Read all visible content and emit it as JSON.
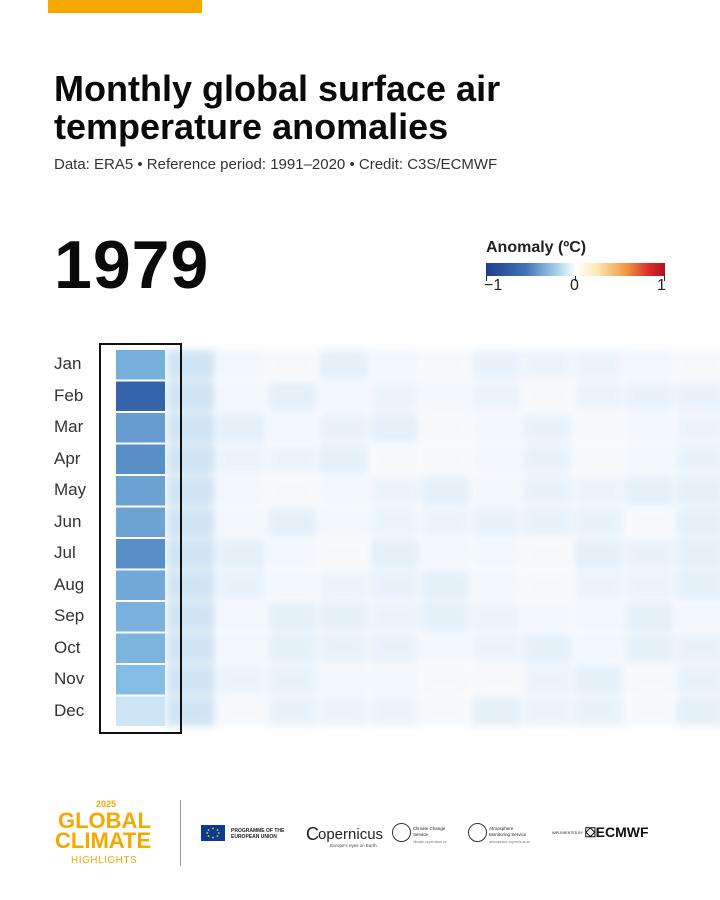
{
  "title": "Monthly global surface air temperature anomalies",
  "subtitle": "Data: ERA5 • Reference period: 1991–2020 • Credit: C3S/ECMWF",
  "year": "1979",
  "legend": {
    "title": "Anomaly (ºC)",
    "ticks": [
      "−1",
      "0",
      "1"
    ],
    "range": [
      -1,
      1
    ]
  },
  "chart_data": {
    "type": "heatmap",
    "title": "Monthly global surface air temperature anomalies",
    "rows": [
      "Jan",
      "Feb",
      "Mar",
      "Apr",
      "May",
      "Jun",
      "Jul",
      "Aug",
      "Sep",
      "Oct",
      "Nov",
      "Dec"
    ],
    "columns": [
      "1979"
    ],
    "values": [
      [
        -0.38
      ],
      [
        -0.72
      ],
      [
        -0.45
      ],
      [
        -0.5
      ],
      [
        -0.43
      ],
      [
        -0.42
      ],
      [
        -0.5
      ],
      [
        -0.4
      ],
      [
        -0.37
      ],
      [
        -0.36
      ],
      [
        -0.33
      ],
      [
        -0.13
      ]
    ],
    "colorscale": {
      "min": -1,
      "max": 1,
      "label": "Anomaly (ºC)"
    }
  },
  "footer": {
    "year": "2025",
    "brand_line1": "GLOBAL",
    "brand_line2": "CLIMATE",
    "brand_line3": "HIGHLIGHTS",
    "eu": "PROGRAMME OF THE EUROPEAN UNION",
    "copernicus": "opernicus",
    "copernicus_tagline": "Europe's eyes on Earth",
    "c3s_name": "Climate Change Service",
    "c3s_url": "climate.copernicus.eu",
    "cams_name": "Atmosphere Monitoring Service",
    "cams_url": "atmosphere.copernicus.eu",
    "implemented_by": "IMPLEMENTED BY",
    "ecmwf": "ECMWF"
  }
}
